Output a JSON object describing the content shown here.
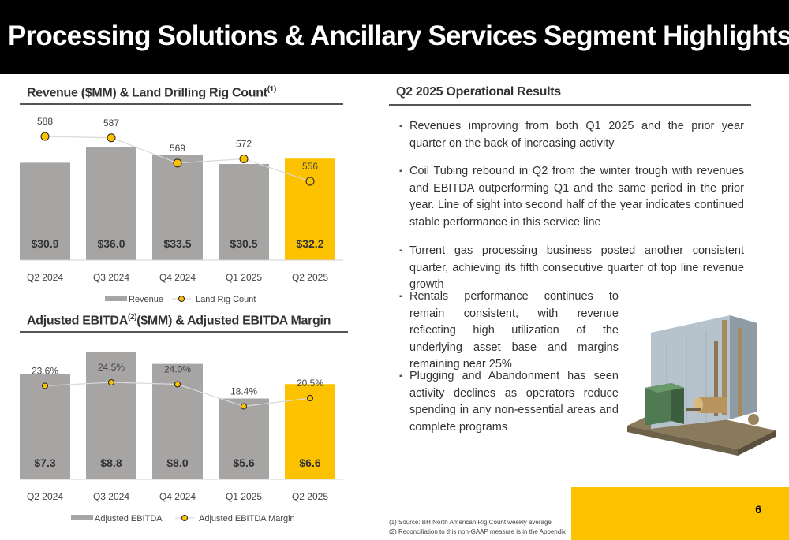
{
  "header": {
    "title": "Processing Solutions & Ancillary Services Segment Highlights"
  },
  "chart_data": [
    {
      "type": "bar",
      "title": "Revenue ($MM) & Land Drilling Rig Count",
      "title_sup": "(1)",
      "categories": [
        "Q2 2024",
        "Q3 2024",
        "Q4 2024",
        "Q1 2025",
        "Q2 2025"
      ],
      "series": [
        {
          "name": "Revenue",
          "type": "bar",
          "values": [
            30.9,
            36.0,
            33.5,
            30.5,
            32.2
          ],
          "labels": [
            "$30.9",
            "$36.0",
            "$33.5",
            "$30.5",
            "$32.2"
          ]
        },
        {
          "name": "Land Rig Count",
          "type": "line",
          "values": [
            588,
            587,
            569,
            572,
            556
          ],
          "labels": [
            "588",
            "587",
            "569",
            "572",
            "556"
          ]
        }
      ],
      "colors": {
        "bar": "#a7a4a4",
        "highlight": "#fcc200",
        "marker": "#fcc200",
        "line": "#d9d9d9"
      },
      "legend": "bottom"
    },
    {
      "type": "bar",
      "title": "Adjusted EBITDA",
      "title_sup": "(2)",
      "title_rest": "($MM) & Adjusted EBITDA Margin",
      "categories": [
        "Q2 2024",
        "Q3 2024",
        "Q4 2024",
        "Q1 2025",
        "Q2 2025"
      ],
      "series": [
        {
          "name": "Adjusted EBITDA",
          "type": "bar",
          "values": [
            7.3,
            8.8,
            8.0,
            5.6,
            6.6
          ],
          "labels": [
            "$7.3",
            "$8.8",
            "$8.0",
            "$5.6",
            "$6.6"
          ]
        },
        {
          "name": "Adjusted EBITDA Margin",
          "type": "line",
          "values": [
            23.6,
            24.5,
            24.0,
            18.4,
            20.5
          ],
          "labels": [
            "23.6%",
            "24.5%",
            "24.0%",
            "18.4%",
            "20.5%"
          ]
        }
      ],
      "colors": {
        "bar": "#a7a4a4",
        "highlight": "#fcc200",
        "marker": "#fcc200",
        "line": "#d9d9d9"
      },
      "legend": "bottom"
    }
  ],
  "results": {
    "title": "Q2 2025 Operational Results",
    "bullets": [
      "Revenues improving from both Q1 2025 and the prior year quarter on the back of increasing activity",
      "Coil Tubing rebound in Q2 from the winter trough with revenues and EBITDA outperforming Q1 and the same period in the prior year. Line of sight into second half of the year indicates continued stable performance in this service line",
      "Torrent gas processing business posted another consistent quarter, achieving its fifth consecutive quarter of top line revenue growth",
      "Rentals performance continues to remain consistent, with revenue reflecting high utilization of the underlying asset base and margins remaining near 25%",
      "Plugging and Abandonment has seen activity declines as operators reduce spending in any non-essential areas and complete programs"
    ]
  },
  "footnotes": [
    "(1)  Source: BH North American Rig Count weekly average",
    "(2)  Reconciliation to this non-GAAP measure is in the Appendix"
  ],
  "page_number": "6"
}
